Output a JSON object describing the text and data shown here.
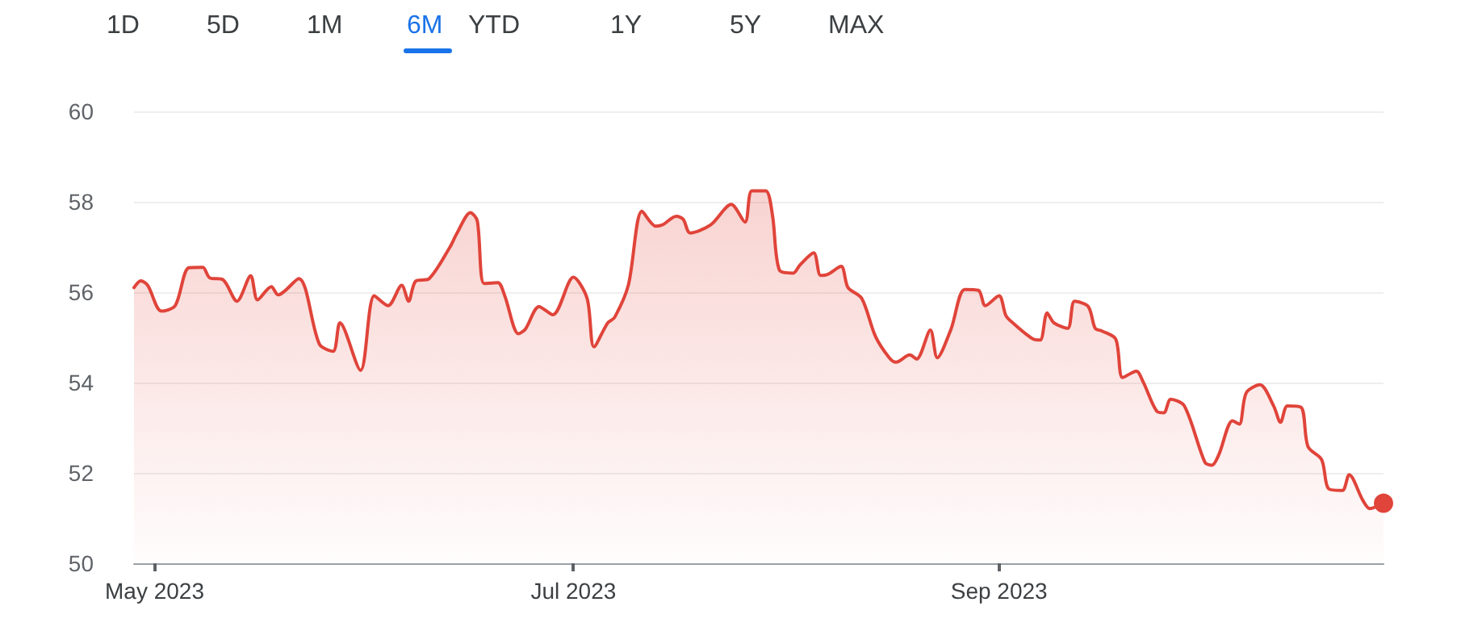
{
  "chart_data": {
    "type": "area",
    "annotations": [
      "1D",
      "5D",
      "1M",
      "6M",
      "YTD",
      "1Y",
      "5Y",
      "MAX"
    ],
    "x": [
      "2023-04-28",
      "2023-04-29",
      "2023-04-30",
      "2023-05-02",
      "2023-05-04",
      "2023-05-06",
      "2023-05-08",
      "2023-05-09",
      "2023-05-11",
      "2023-05-13",
      "2023-05-15",
      "2023-05-16",
      "2023-05-18",
      "2023-05-19",
      "2023-05-22",
      "2023-05-25",
      "2023-05-27",
      "2023-05-28",
      "2023-05-31",
      "2023-06-02",
      "2023-06-04",
      "2023-06-06",
      "2023-06-07",
      "2023-06-08",
      "2023-06-10",
      "2023-06-13",
      "2023-06-14",
      "2023-06-16",
      "2023-06-17",
      "2023-06-18",
      "2023-06-20",
      "2023-06-21",
      "2023-06-23",
      "2023-06-24",
      "2023-06-26",
      "2023-06-28",
      "2023-07-01",
      "2023-07-03",
      "2023-07-04",
      "2023-07-06",
      "2023-07-07",
      "2023-07-09",
      "2023-07-11",
      "2023-07-13",
      "2023-07-14",
      "2023-07-16",
      "2023-07-17",
      "2023-07-18",
      "2023-07-21",
      "2023-07-24",
      "2023-07-26",
      "2023-07-27",
      "2023-07-29",
      "2023-07-30",
      "2023-07-31",
      "2023-08-02",
      "2023-08-03",
      "2023-08-05",
      "2023-08-06",
      "2023-08-07",
      "2023-08-09",
      "2023-08-10",
      "2023-08-12",
      "2023-08-14",
      "2023-08-16",
      "2023-08-17",
      "2023-08-19",
      "2023-08-20",
      "2023-08-22",
      "2023-08-23",
      "2023-08-25",
      "2023-08-27",
      "2023-08-29",
      "2023-08-30",
      "2023-09-01",
      "2023-09-02",
      "2023-09-03",
      "2023-09-06",
      "2023-09-07",
      "2023-09-08",
      "2023-09-09",
      "2023-09-11",
      "2023-09-12",
      "2023-09-14",
      "2023-09-15",
      "2023-09-16",
      "2023-09-18",
      "2023-09-19",
      "2023-09-21",
      "2023-09-22",
      "2023-09-24",
      "2023-09-25",
      "2023-09-26",
      "2023-09-28",
      "2023-10-01",
      "2023-10-02",
      "2023-10-03",
      "2023-10-05",
      "2023-10-06",
      "2023-10-07",
      "2023-10-09",
      "2023-10-11",
      "2023-10-12",
      "2023-10-13",
      "2023-10-15",
      "2023-10-16",
      "2023-10-18",
      "2023-10-19",
      "2023-10-21",
      "2023-10-22",
      "2023-10-24",
      "2023-10-25",
      "2023-10-27"
    ],
    "series": [
      {
        "color": "#e0443a",
        "values": [
          56.1,
          56.25,
          56.15,
          55.58,
          55.7,
          56.54,
          56.55,
          56.32,
          56.27,
          55.8,
          56.36,
          55.83,
          56.12,
          55.94,
          56.3,
          54.85,
          54.69,
          55.32,
          54.27,
          55.92,
          55.7,
          56.15,
          55.8,
          56.24,
          56.3,
          56.99,
          57.29,
          57.76,
          57.58,
          56.19,
          56.21,
          55.92,
          55.08,
          55.18,
          55.68,
          55.5,
          56.33,
          55.86,
          54.79,
          55.32,
          55.44,
          56.15,
          57.79,
          57.46,
          57.49,
          57.68,
          57.61,
          57.31,
          57.49,
          57.94,
          57.55,
          58.24,
          58.24,
          57.7,
          56.49,
          56.42,
          56.6,
          56.87,
          56.37,
          56.39,
          56.57,
          56.1,
          55.86,
          55.02,
          54.55,
          54.45,
          54.61,
          54.52,
          55.16,
          54.55,
          55.18,
          56.06,
          56.04,
          55.7,
          55.92,
          55.48,
          55.32,
          54.96,
          54.94,
          55.54,
          55.32,
          55.2,
          55.8,
          55.68,
          55.2,
          55.14,
          54.96,
          54.11,
          54.25,
          54.01,
          53.36,
          53.33,
          53.63,
          53.48,
          52.23,
          52.17,
          52.4,
          53.15,
          53.08,
          53.77,
          53.95,
          53.48,
          53.12,
          53.48,
          53.45,
          52.58,
          52.29,
          51.65,
          51.61,
          51.96,
          51.39,
          51.21,
          51.33
        ]
      }
    ],
    "xlim": [
      "2023-04-28",
      "2023-10-27"
    ],
    "xticks": [
      {
        "value": "2023-05-01",
        "label": "May 2023"
      },
      {
        "value": "2023-07-01",
        "label": "Jul 2023"
      },
      {
        "value": "2023-09-01",
        "label": "Sep 2023"
      }
    ],
    "ylim": [
      50,
      60
    ],
    "yticks": [
      50,
      52,
      54,
      56,
      58,
      60
    ],
    "grid": "y",
    "marker": "none",
    "line_style": "solid"
  }
}
